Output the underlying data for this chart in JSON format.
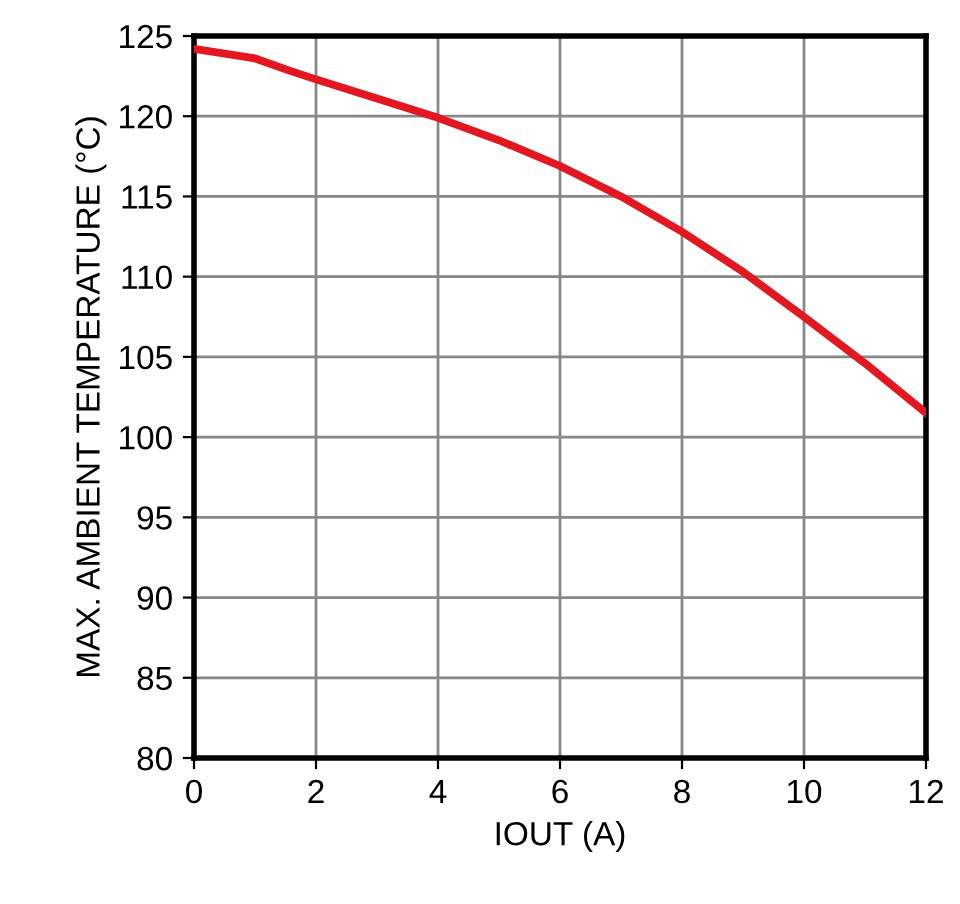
{
  "chart_data": {
    "type": "line",
    "xlabel": "IOUT (A)",
    "ylabel": "MAX. AMBIENT TEMPERATURE (°C)",
    "series": [
      {
        "color": "#e3171f",
        "x": [
          0,
          1,
          1.6,
          2,
          3,
          4,
          5,
          6,
          7,
          8,
          9,
          10,
          11,
          12
        ],
        "values": [
          124.2,
          123.6,
          122.8,
          122.3,
          121.1,
          119.9,
          118.5,
          116.9,
          115.0,
          112.8,
          110.3,
          107.5,
          104.6,
          101.5
        ]
      }
    ],
    "xlim": [
      0,
      12
    ],
    "xticks": [
      0,
      2,
      4,
      6,
      8,
      10,
      12
    ],
    "ylim": [
      80,
      125
    ],
    "yticks": [
      80,
      85,
      90,
      95,
      100,
      105,
      110,
      115,
      120,
      125
    ],
    "grid": true,
    "marker": "none",
    "line_style": "solid"
  }
}
